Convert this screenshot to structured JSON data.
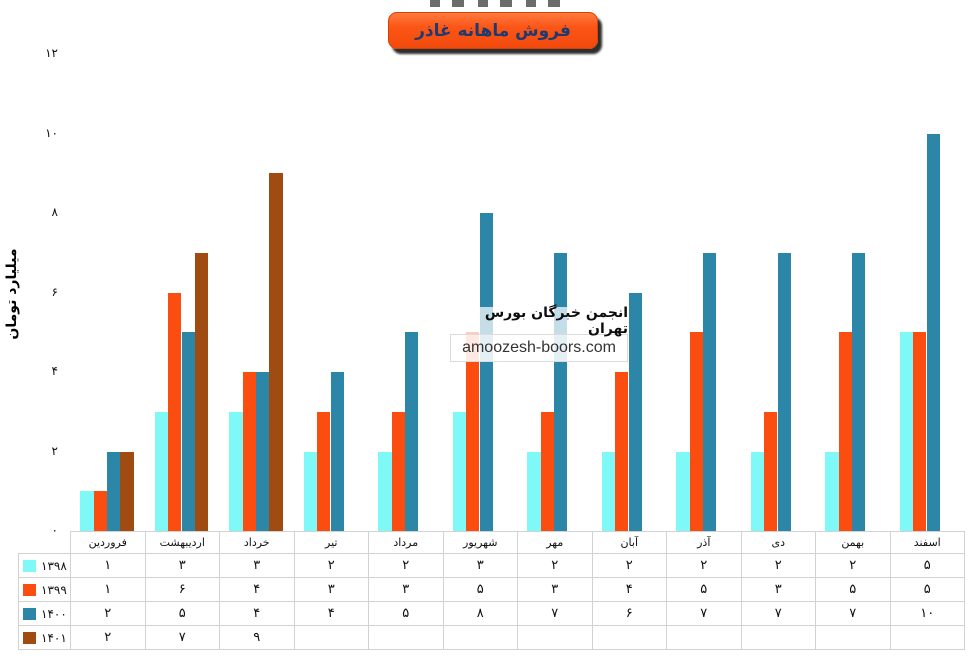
{
  "title_button": {
    "label": "فروش ماهانه غاذر",
    "bg_color": "#fb5415",
    "text_color": "#1e3a6e"
  },
  "watermark": {
    "line1": "انجمن خبرگان بورس تهران",
    "line2": "amoozesh-boors.com"
  },
  "chart_data": {
    "type": "bar",
    "title": "فروش ماهانه غاذر",
    "xlabel": "",
    "ylabel": "میلیارد تومان",
    "ylim": [
      0,
      12
    ],
    "grid": false,
    "legend_position": "table-rows-left",
    "yticks": [
      {
        "value": 0,
        "label": "۰"
      },
      {
        "value": 2,
        "label": "۲"
      },
      {
        "value": 4,
        "label": "۴"
      },
      {
        "value": 6,
        "label": "۶"
      },
      {
        "value": 8,
        "label": "۸"
      },
      {
        "value": 10,
        "label": "۱۰"
      },
      {
        "value": 12,
        "label": "۱۲"
      }
    ],
    "categories": [
      "فروردین",
      "اردیبهشت",
      "خرداد",
      "تیر",
      "مرداد",
      "شهریور",
      "مهر",
      "آبان",
      "آذر",
      "دی",
      "بهمن",
      "اسفند"
    ],
    "series": [
      {
        "name": "۱۳۹۸",
        "name_en": "1398",
        "color": "#7ef9f7",
        "values": [
          1,
          3,
          3,
          2,
          2,
          3,
          2,
          2,
          2,
          2,
          2,
          5
        ],
        "display": [
          "۱",
          "۳",
          "۳",
          "۲",
          "۲",
          "۳",
          "۲",
          "۲",
          "۲",
          "۲",
          "۲",
          "۵"
        ]
      },
      {
        "name": "۱۳۹۹",
        "name_en": "1399",
        "color": "#fb4d10",
        "values": [
          1,
          6,
          4,
          3,
          3,
          5,
          3,
          4,
          5,
          3,
          5,
          5
        ],
        "display": [
          "۱",
          "۶",
          "۴",
          "۳",
          "۳",
          "۵",
          "۳",
          "۴",
          "۵",
          "۳",
          "۵",
          "۵"
        ]
      },
      {
        "name": "۱۴۰۰",
        "name_en": "1400",
        "color": "#2b86a8",
        "values": [
          2,
          5,
          4,
          4,
          5,
          8,
          7,
          6,
          7,
          7,
          7,
          10
        ],
        "display": [
          "۲",
          "۵",
          "۴",
          "۴",
          "۵",
          "۸",
          "۷",
          "۶",
          "۷",
          "۷",
          "۷",
          "۱۰"
        ]
      },
      {
        "name": "۱۴۰۱",
        "name_en": "1401",
        "color": "#a04b11",
        "values": [
          2,
          7,
          9,
          null,
          null,
          null,
          null,
          null,
          null,
          null,
          null,
          null
        ],
        "display": [
          "۲",
          "۷",
          "۹",
          "",
          "",
          "",
          "",
          "",
          "",
          "",
          "",
          ""
        ]
      }
    ]
  }
}
